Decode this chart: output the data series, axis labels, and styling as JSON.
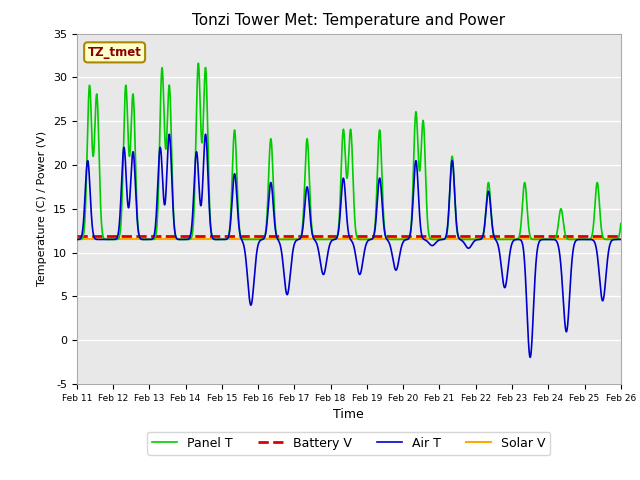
{
  "title": "Tonzi Tower Met: Temperature and Power",
  "xlabel": "Time",
  "ylabel": "Temperature (C) / Power (V)",
  "ylim": [
    -5,
    35
  ],
  "xlim": [
    0,
    15
  ],
  "bg_color": "#e8e8e8",
  "fig_bg_color": "#ffffff",
  "annotation_label": "TZ_tmet",
  "annotation_color": "#880000",
  "annotation_bg": "#ffffcc",
  "annotation_border": "#aa8800",
  "xtick_labels": [
    "Feb 11",
    "Feb 12",
    "Feb 13",
    "Feb 14",
    "Feb 15",
    "Feb 16",
    "Feb 17",
    "Feb 18",
    "Feb 19",
    "Feb 20",
    "Feb 21",
    "Feb 22",
    "Feb 23",
    "Feb 24",
    "Feb 25",
    "Feb 26"
  ],
  "ytick_values": [
    -5,
    0,
    5,
    10,
    15,
    20,
    25,
    30,
    35
  ],
  "legend_items": [
    {
      "label": "Panel T",
      "color": "#00cc00",
      "lw": 1.2,
      "ls": "-"
    },
    {
      "label": "Battery V",
      "color": "#dd0000",
      "lw": 2.0,
      "ls": "--"
    },
    {
      "label": "Air T",
      "color": "#0000cc",
      "lw": 1.2,
      "ls": "-"
    },
    {
      "label": "Solar V",
      "color": "#ffaa00",
      "lw": 1.5,
      "ls": "-"
    }
  ],
  "battery_v": 11.9,
  "solar_v": 11.55,
  "grid_color": "#ffffff",
  "grid_lw": 1.0
}
